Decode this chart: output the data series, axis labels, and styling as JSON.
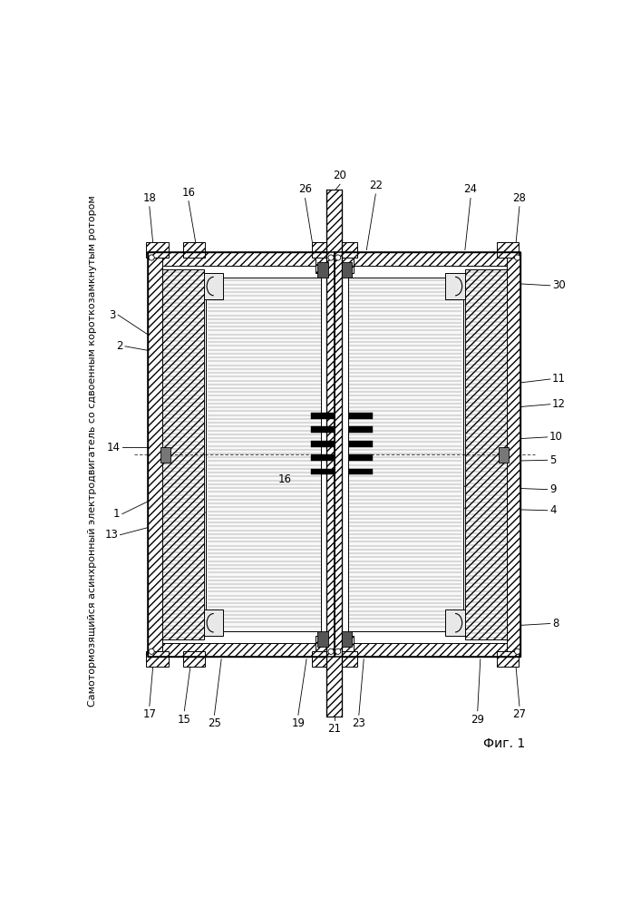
{
  "title": "Самотормозящийся асинхронный электродвигатель со сдвоенным короткозамкнутым ротором",
  "fig_label": "Фиг. 1",
  "bg": "#ffffff"
}
